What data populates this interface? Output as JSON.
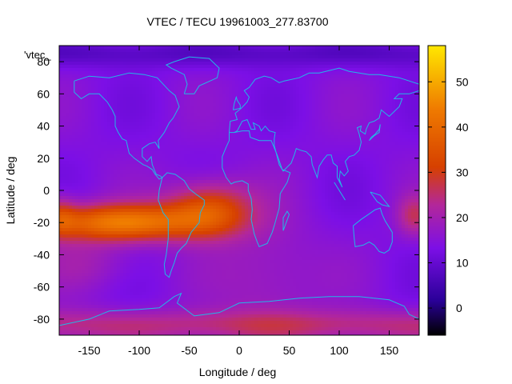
{
  "chart_data": {
    "type": "heatmap",
    "title": "VTEC / TECU 19961003_277.83700",
    "xlabel": "Longitude / deg",
    "ylabel": "Latitude / deg",
    "legend_key": "'vtec_",
    "xlim": [
      -180,
      180
    ],
    "ylim": [
      -90,
      90
    ],
    "x_ticks": [
      -150,
      -100,
      -50,
      0,
      50,
      100,
      150
    ],
    "y_ticks": [
      -80,
      -60,
      -40,
      -20,
      0,
      20,
      40,
      60,
      80
    ],
    "colorbar": {
      "range": [
        -6,
        58
      ],
      "ticks": [
        0,
        10,
        20,
        30,
        40,
        50
      ],
      "palette": [
        "#000000",
        "#2a0098",
        "#7c0fe6",
        "#b3279a",
        "#d64000",
        "#ef7a00",
        "#ffe800"
      ]
    },
    "grid": false,
    "colors": {
      "coastline": "#22b8e6",
      "background": "#ffffff",
      "axis": "#000000"
    },
    "field_description_values": {
      "background_vtec": 14,
      "polar_north_vtec": 8,
      "equatorial_peak_pacific_vtec": 43,
      "equatorial_peak_location": [
        -110,
        -18
      ],
      "southern_band_vtec": 26
    }
  }
}
